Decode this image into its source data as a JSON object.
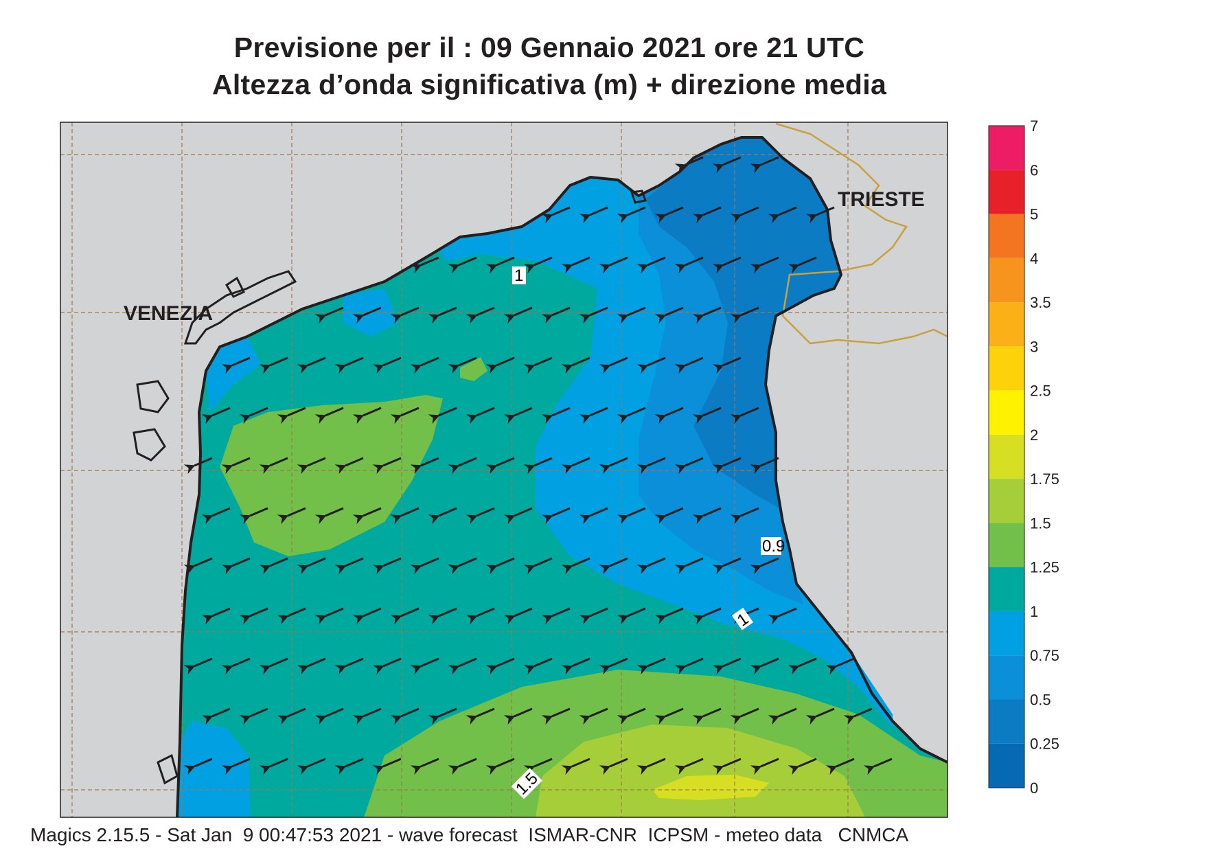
{
  "title": {
    "line1": "Previsione per il  :  09  Gennaio  2021   ore 21 UTC",
    "line2": "Altezza d’onda significativa (m) + direzione media"
  },
  "cities": {
    "venezia": "VENEZIA",
    "trieste": "TRIESTE"
  },
  "contour_labels": {
    "c1_top": "1",
    "c09": "0.9",
    "c1_right": "1",
    "c15": "1.5"
  },
  "colorbar": {
    "ticks": [
      "7",
      "6",
      "5",
      "4",
      "3.5",
      "3",
      "2.5",
      "2",
      "1.75",
      "1.5",
      "1.25",
      "1",
      "0.75",
      "0.5",
      "0.25",
      "0"
    ],
    "colors": [
      "#ee1c64",
      "#e8202a",
      "#f47521",
      "#f7941d",
      "#fbb017",
      "#fdd20a",
      "#fff200",
      "#d7df23",
      "#a6ce39",
      "#72bf4a",
      "#00a99d",
      "#00a0e3",
      "#0a8fd8",
      "#0b7cc4",
      "#0569b3"
    ],
    "units": "m"
  },
  "arrows": {
    "direction": "toward WSW",
    "color": "#231f20"
  },
  "footer": "Magics 2.15.5 - Sat Jan  9 00:47:53 2021 - wave forecast  ISMAR-CNR  ICPSM - meteo data   CNMCA"
}
